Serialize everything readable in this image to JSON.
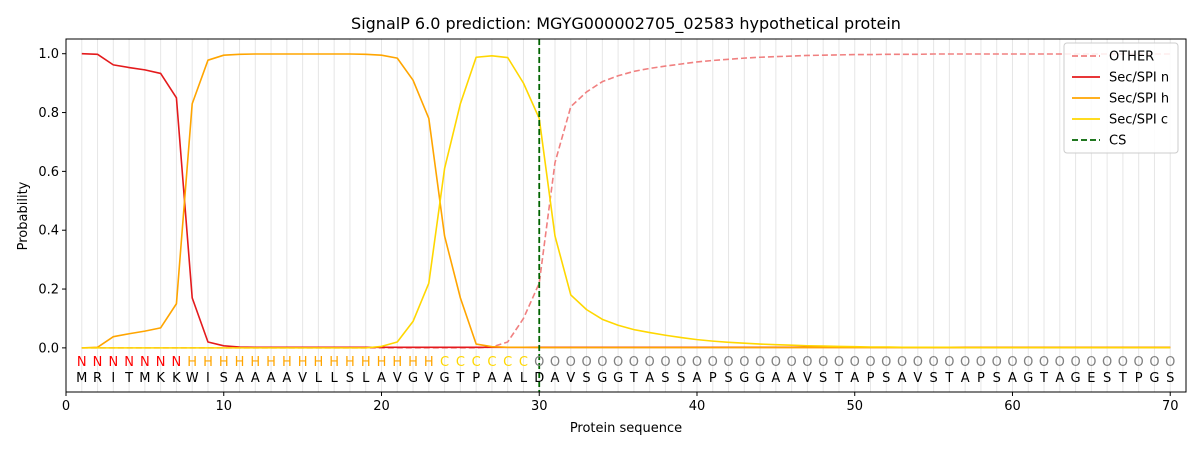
{
  "chart_data": {
    "type": "line",
    "title": "SignalP 6.0 prediction: MGYG000002705_02583 hypothetical protein",
    "xlabel": "Protein sequence",
    "ylabel": "Probability",
    "xlim": [
      0,
      71
    ],
    "ylim": [
      -0.15,
      1.05
    ],
    "x_ticks": [
      0,
      10,
      20,
      30,
      40,
      50,
      60,
      70
    ],
    "y_ticks": [
      0.0,
      0.2,
      0.4,
      0.6,
      0.8,
      1.0
    ],
    "x_tick_labels": [
      "0",
      "10",
      "20",
      "30",
      "40",
      "50",
      "60",
      "70"
    ],
    "y_tick_labels": [
      "0.0",
      "0.2",
      "0.4",
      "0.6",
      "0.8",
      "1.0"
    ],
    "grid": "vertical lines at each residue",
    "legend_position": "top-right",
    "sequence": [
      "M",
      "R",
      "I",
      "T",
      "M",
      "K",
      "K",
      "W",
      "I",
      "S",
      "A",
      "A",
      "A",
      "A",
      "V",
      "L",
      "L",
      "S",
      "L",
      "A",
      "V",
      "G",
      "V",
      "G",
      "T",
      "P",
      "A",
      "A",
      "L",
      "D",
      "A",
      "V",
      "S",
      "G",
      "G",
      "T",
      "A",
      "S",
      "S",
      "A",
      "P",
      "S",
      "G",
      "G",
      "A",
      "A",
      "V",
      "S",
      "T",
      "A",
      "P",
      "S",
      "A",
      "V",
      "S",
      "T",
      "A",
      "P",
      "S",
      "A",
      "G",
      "T",
      "A",
      "G",
      "E",
      "S",
      "T",
      "P",
      "G",
      "S"
    ],
    "region_labels": [
      "N",
      "N",
      "N",
      "N",
      "N",
      "N",
      "N",
      "H",
      "H",
      "H",
      "H",
      "H",
      "H",
      "H",
      "H",
      "H",
      "H",
      "H",
      "H",
      "H",
      "H",
      "H",
      "H",
      "C",
      "C",
      "C",
      "C",
      "C",
      "C",
      "O",
      "O",
      "O",
      "O",
      "O",
      "O",
      "O",
      "O",
      "O",
      "O",
      "O",
      "O",
      "O",
      "O",
      "O",
      "O",
      "O",
      "O",
      "O",
      "O",
      "O",
      "O",
      "O",
      "O",
      "O",
      "O",
      "O",
      "O",
      "O",
      "O",
      "O",
      "O",
      "O",
      "O",
      "O",
      "O",
      "O",
      "O",
      "O",
      "O",
      "O"
    ],
    "region_colors": {
      "N": "#ff0000",
      "H": "#ffa500",
      "C": "#ffd700",
      "O": "#808080"
    },
    "cleavage_site": 30,
    "series": [
      {
        "name": "OTHER",
        "color": "#f08080",
        "dash": "dashed",
        "values": [
          0,
          0,
          0,
          0,
          0,
          0,
          0,
          0,
          0,
          0,
          0,
          0,
          0,
          0,
          0,
          0,
          0,
          0,
          0,
          0,
          0,
          0,
          0,
          0,
          0,
          0,
          0.003,
          0.02,
          0.1,
          0.22,
          0.63,
          0.82,
          0.87,
          0.905,
          0.925,
          0.94,
          0.95,
          0.958,
          0.965,
          0.972,
          0.977,
          0.981,
          0.985,
          0.988,
          0.99,
          0.992,
          0.994,
          0.995,
          0.996,
          0.997,
          0.997,
          0.998,
          0.998,
          0.998,
          0.999,
          0.999,
          0.999,
          0.999,
          0.999,
          0.999,
          0.999,
          0.999,
          0.999,
          0.999,
          0.999,
          0.999,
          0.999,
          0.999,
          0.999,
          0.999
        ]
      },
      {
        "name": "Sec/SPI n",
        "color": "#e41a1c",
        "dash": "solid",
        "values": [
          1.0,
          0.998,
          0.962,
          0.953,
          0.945,
          0.933,
          0.85,
          0.17,
          0.02,
          0.007,
          0.003,
          0.002,
          0.002,
          0.002,
          0.002,
          0.002,
          0.002,
          0.002,
          0.002,
          0.002,
          0.002,
          0.002,
          0.002,
          0.002,
          0.002,
          0.002,
          0.002,
          0.002,
          0.002,
          0.002,
          0.002,
          0.002,
          0.002,
          0.002,
          0.002,
          0.002,
          0.002,
          0.002,
          0.002,
          0.002,
          0.002,
          0.002,
          0.002,
          0.002,
          0.002,
          0.002,
          0.002,
          0.002,
          0.002,
          0.002,
          0.002,
          0.002,
          0.002,
          0.002,
          0.002,
          0.002,
          0.002,
          0.002,
          0.002,
          0.002,
          0.002,
          0.002,
          0.002,
          0.002,
          0.002,
          0.002,
          0.002,
          0.002,
          0.002,
          0.002
        ]
      },
      {
        "name": "Sec/SPI h",
        "color": "#ffa500",
        "dash": "solid",
        "values": [
          0.0,
          0.002,
          0.038,
          0.048,
          0.057,
          0.068,
          0.15,
          0.83,
          0.978,
          0.995,
          0.998,
          0.999,
          0.999,
          0.999,
          0.999,
          0.999,
          0.999,
          0.999,
          0.998,
          0.995,
          0.985,
          0.91,
          0.78,
          0.38,
          0.17,
          0.013,
          0.004,
          0.002,
          0.002,
          0.001,
          0.001,
          0.001,
          0.001,
          0.001,
          0.001,
          0.001,
          0.001,
          0.001,
          0.001,
          0.001,
          0.001,
          0.001,
          0.001,
          0.001,
          0.001,
          0.001,
          0.001,
          0.001,
          0.001,
          0.001,
          0.001,
          0.001,
          0.001,
          0.001,
          0.001,
          0.001,
          0.001,
          0.001,
          0.001,
          0.001,
          0.001,
          0.001,
          0.001,
          0.001,
          0.001,
          0.001,
          0.001,
          0.001,
          0.001,
          0.001
        ]
      },
      {
        "name": "Sec/SPI c",
        "color": "#ffd700",
        "dash": "solid",
        "values": [
          0,
          0,
          0,
          0,
          0,
          0,
          0,
          0,
          0,
          0,
          0,
          0,
          0,
          0,
          0,
          0,
          0,
          0,
          0,
          0.005,
          0.02,
          0.09,
          0.22,
          0.61,
          0.83,
          0.988,
          0.993,
          0.987,
          0.9,
          0.78,
          0.38,
          0.18,
          0.13,
          0.097,
          0.077,
          0.062,
          0.052,
          0.043,
          0.035,
          0.028,
          0.023,
          0.019,
          0.016,
          0.013,
          0.011,
          0.009,
          0.007,
          0.006,
          0.005,
          0.004,
          0.003,
          0.003,
          0.002,
          0.002,
          0.002,
          0.002,
          0.001,
          0.001,
          0.001,
          0.001,
          0.001,
          0.001,
          0.001,
          0.001,
          0.001,
          0.001,
          0.001,
          0.001,
          0.001,
          0.001
        ]
      },
      {
        "name": "CS",
        "color": "#006400",
        "dash": "dashed",
        "x": 30
      }
    ]
  }
}
